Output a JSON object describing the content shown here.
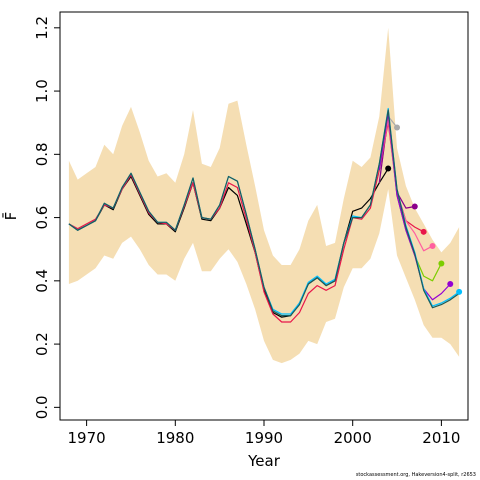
{
  "chart_data": {
    "type": "line",
    "title": "",
    "xlabel": "Year",
    "ylabel": "F̄",
    "xlim": [
      1967,
      2013
    ],
    "ylim": [
      -0.04,
      1.25
    ],
    "xticks": [
      1970,
      1980,
      1990,
      2000,
      2010
    ],
    "xtick_labels": [
      "1970",
      "1980",
      "1990",
      "2000",
      "2010"
    ],
    "yticks": [
      0.0,
      0.2,
      0.4,
      0.6,
      0.8,
      1.0,
      1.2
    ],
    "ytick_labels": [
      "0.0",
      "0.2",
      "0.4",
      "0.6",
      "0.8",
      "1.0",
      "1.2"
    ],
    "grid": false,
    "band": {
      "color": "#f5deb3",
      "x": [
        1968,
        1969,
        1970,
        1971,
        1972,
        1973,
        1974,
        1975,
        1976,
        1977,
        1978,
        1979,
        1980,
        1981,
        1982,
        1983,
        1984,
        1985,
        1986,
        1987,
        1988,
        1989,
        1990,
        1991,
        1992,
        1993,
        1994,
        1995,
        1996,
        1997,
        1998,
        1999,
        2000,
        2001,
        2002,
        2003,
        2004,
        2005,
        2006,
        2007,
        2008,
        2009,
        2010,
        2011,
        2012
      ],
      "upper": [
        0.78,
        0.72,
        0.74,
        0.76,
        0.83,
        0.8,
        0.89,
        0.95,
        0.87,
        0.78,
        0.73,
        0.74,
        0.71,
        0.8,
        0.94,
        0.77,
        0.76,
        0.82,
        0.96,
        0.97,
        0.83,
        0.7,
        0.56,
        0.48,
        0.45,
        0.45,
        0.5,
        0.59,
        0.64,
        0.51,
        0.52,
        0.66,
        0.78,
        0.76,
        0.79,
        0.92,
        1.2,
        0.82,
        0.7,
        0.63,
        0.58,
        0.53,
        0.49,
        0.52,
        0.57
      ],
      "lower": [
        0.39,
        0.4,
        0.42,
        0.44,
        0.48,
        0.47,
        0.52,
        0.54,
        0.5,
        0.45,
        0.42,
        0.42,
        0.4,
        0.47,
        0.52,
        0.43,
        0.43,
        0.47,
        0.5,
        0.46,
        0.39,
        0.31,
        0.21,
        0.15,
        0.14,
        0.15,
        0.17,
        0.21,
        0.2,
        0.27,
        0.28,
        0.38,
        0.44,
        0.44,
        0.47,
        0.55,
        0.69,
        0.48,
        0.41,
        0.34,
        0.26,
        0.22,
        0.22,
        0.2,
        0.16
      ]
    },
    "series": [
      {
        "color": "#000000",
        "x": [
          1968,
          1969,
          1970,
          1971,
          1972,
          1973,
          1974,
          1975,
          1976,
          1977,
          1978,
          1979,
          1980,
          1981,
          1982,
          1983,
          1984,
          1985,
          1986,
          1987,
          1988,
          1989,
          1990,
          1991,
          1992,
          1993,
          1994,
          1995,
          1996,
          1997,
          1998,
          1999,
          2000,
          2001,
          2002,
          2003,
          2004
        ],
        "values": [
          0.58,
          0.56,
          0.575,
          0.59,
          0.64,
          0.625,
          0.69,
          0.73,
          0.67,
          0.61,
          0.58,
          0.58,
          0.555,
          0.63,
          0.71,
          0.595,
          0.59,
          0.63,
          0.695,
          0.67,
          0.58,
          0.49,
          0.37,
          0.3,
          0.285,
          0.29,
          0.33,
          0.39,
          0.41,
          0.385,
          0.4,
          0.52,
          0.62,
          0.63,
          0.66,
          0.71,
          0.755
        ],
        "end_point": 0.755
      },
      {
        "color": "#aaaaaa",
        "x": [
          2003,
          2004,
          2005
        ],
        "values": [
          0.71,
          0.92,
          0.885
        ],
        "end_point": 0.885
      },
      {
        "color": "#8b008b",
        "x": [
          2003,
          2004,
          2005,
          2006,
          2007
        ],
        "values": [
          0.71,
          0.92,
          0.68,
          0.63,
          0.635
        ],
        "end_point": 0.635
      },
      {
        "color": "#e8174a",
        "x": [
          1968,
          1969,
          1970,
          1971,
          1972,
          1973,
          1974,
          1975,
          1976,
          1977,
          1978,
          1979,
          1980,
          1981,
          1982,
          1983,
          1984,
          1985,
          1986,
          1987,
          1988,
          1989,
          1990,
          1991,
          1992,
          1993,
          1994,
          1995,
          1996,
          1997,
          1998,
          1999,
          2000,
          2001,
          2002,
          2003,
          2004,
          2005,
          2006,
          2007,
          2008
        ],
        "values": [
          0.58,
          0.565,
          0.58,
          0.595,
          0.64,
          0.63,
          0.69,
          0.735,
          0.675,
          0.615,
          0.585,
          0.58,
          0.56,
          0.635,
          0.71,
          0.6,
          0.595,
          0.63,
          0.71,
          0.695,
          0.595,
          0.49,
          0.365,
          0.295,
          0.27,
          0.27,
          0.3,
          0.36,
          0.385,
          0.37,
          0.385,
          0.5,
          0.6,
          0.595,
          0.63,
          0.75,
          0.9,
          0.68,
          0.59,
          0.57,
          0.555
        ],
        "end_point": 0.555
      },
      {
        "color": "#ff5fa0",
        "x": [
          2003,
          2004,
          2005,
          2006,
          2007,
          2008,
          2009
        ],
        "values": [
          0.75,
          0.91,
          0.67,
          0.59,
          0.55,
          0.495,
          0.51
        ],
        "end_point": 0.51
      },
      {
        "color": "#7ccd00",
        "x": [
          2003,
          2004,
          2005,
          2006,
          2007,
          2008,
          2009,
          2010
        ],
        "values": [
          0.75,
          0.93,
          0.67,
          0.56,
          0.48,
          0.415,
          0.4,
          0.455
        ],
        "end_point": 0.455
      },
      {
        "color": "#9400d3",
        "x": [
          2003,
          2004,
          2005,
          2006,
          2007,
          2008,
          2009,
          2010,
          2011
        ],
        "values": [
          0.75,
          0.93,
          0.67,
          0.56,
          0.48,
          0.375,
          0.34,
          0.36,
          0.39
        ],
        "end_point": 0.39
      },
      {
        "color": "#00bfff",
        "x": [
          1968,
          1969,
          1970,
          1971,
          1972,
          1973,
          1974,
          1975,
          1976,
          1977,
          1978,
          1979,
          1980,
          1981,
          1982,
          1983,
          1984,
          1985,
          1986,
          1987,
          1988,
          1989,
          1990,
          1991,
          1992,
          1993,
          1994,
          1995,
          1996,
          1997,
          1998,
          1999,
          2000,
          2001,
          2002,
          2003,
          2004,
          2005,
          2006,
          2007,
          2008,
          2009,
          2010,
          2011,
          2012
        ],
        "values": [
          0.58,
          0.56,
          0.575,
          0.59,
          0.645,
          0.63,
          0.695,
          0.74,
          0.68,
          0.62,
          0.585,
          0.585,
          0.56,
          0.64,
          0.725,
          0.6,
          0.595,
          0.64,
          0.73,
          0.715,
          0.61,
          0.5,
          0.38,
          0.31,
          0.295,
          0.295,
          0.33,
          0.395,
          0.415,
          0.39,
          0.405,
          0.52,
          0.605,
          0.6,
          0.64,
          0.77,
          0.945,
          0.69,
          0.575,
          0.49,
          0.375,
          0.32,
          0.33,
          0.345,
          0.365
        ],
        "end_point": 0.365
      },
      {
        "color": "#1a5c5c",
        "x": [
          1968,
          1969,
          1970,
          1971,
          1972,
          1973,
          1974,
          1975,
          1976,
          1977,
          1978,
          1979,
          1980,
          1981,
          1982,
          1983,
          1984,
          1985,
          1986,
          1987,
          1988,
          1989,
          1990,
          1991,
          1992,
          1993,
          1994,
          1995,
          1996,
          1997,
          1998,
          1999,
          2000,
          2001,
          2002,
          2003,
          2004,
          2005,
          2006,
          2007,
          2008,
          2009,
          2010,
          2011,
          2012
        ],
        "values": [
          0.58,
          0.56,
          0.575,
          0.59,
          0.645,
          0.63,
          0.695,
          0.74,
          0.68,
          0.62,
          0.585,
          0.585,
          0.56,
          0.64,
          0.725,
          0.6,
          0.595,
          0.64,
          0.73,
          0.715,
          0.61,
          0.5,
          0.38,
          0.305,
          0.29,
          0.29,
          0.325,
          0.39,
          0.41,
          0.385,
          0.4,
          0.52,
          0.6,
          0.6,
          0.64,
          0.77,
          0.94,
          0.69,
          0.57,
          0.485,
          0.37,
          0.315,
          0.325,
          0.34,
          0.36
        ],
        "end_point": null
      }
    ]
  },
  "credit": "stockassessment.org, Hakeversion4-split, r2653"
}
